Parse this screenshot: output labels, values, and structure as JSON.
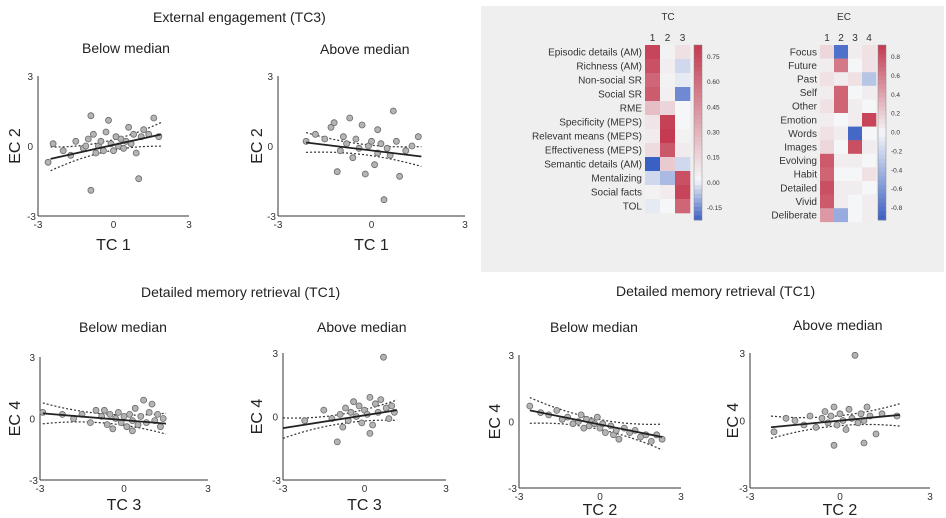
{
  "headings": {
    "top": "External engagement (TC3)",
    "middle_left": "Detailed memory retrieval (TC1)",
    "middle_right": "Detailed memory retrieval  (TC1)"
  },
  "chart_data": [
    {
      "type": "scatter",
      "title": "Below median",
      "xlabel": "TC 1",
      "ylabel": "EC 2",
      "xlim": [
        -3,
        3
      ],
      "ylim": [
        -3,
        3
      ],
      "xticks": [
        "-3",
        "0",
        "3"
      ],
      "yticks": [
        "3",
        "0",
        "-3"
      ],
      "fit": {
        "x1": -2.5,
        "y1": -0.55,
        "x2": 1.9,
        "y2": 0.5
      },
      "points": [
        [
          -2.6,
          -0.7
        ],
        [
          -2.4,
          0.1
        ],
        [
          -2.0,
          -0.2
        ],
        [
          -1.7,
          -0.4
        ],
        [
          -1.5,
          0.2
        ],
        [
          -1.2,
          -0.1
        ],
        [
          -1.0,
          0.3
        ],
        [
          -0.9,
          1.3
        ],
        [
          -0.8,
          0.5
        ],
        [
          -0.7,
          -0.3
        ],
        [
          -0.6,
          0.0
        ],
        [
          -0.5,
          0.2
        ],
        [
          -0.4,
          -0.2
        ],
        [
          -0.3,
          0.6
        ],
        [
          -0.2,
          1.1
        ],
        [
          -0.1,
          0.1
        ],
        [
          0.0,
          -0.2
        ],
        [
          0.1,
          0.4
        ],
        [
          0.2,
          0.0
        ],
        [
          0.3,
          0.3
        ],
        [
          0.4,
          -0.1
        ],
        [
          0.5,
          0.2
        ],
        [
          0.6,
          0.8
        ],
        [
          0.7,
          0.1
        ],
        [
          0.8,
          0.5
        ],
        [
          0.9,
          -0.3
        ],
        [
          1.0,
          -1.4
        ],
        [
          1.1,
          0.4
        ],
        [
          1.2,
          0.7
        ],
        [
          1.4,
          0.5
        ],
        [
          1.6,
          1.2
        ],
        [
          1.8,
          0.4
        ],
        [
          -0.9,
          -1.9
        ],
        [
          -1.1,
          0.0
        ]
      ]
    },
    {
      "type": "scatter",
      "title": "Above median",
      "xlabel": "TC 1",
      "ylabel": "EC 2",
      "xlim": [
        -3,
        3
      ],
      "ylim": [
        -3,
        3
      ],
      "xticks": [
        "-3",
        "0",
        "3"
      ],
      "yticks": [
        "3",
        "0",
        "-3"
      ],
      "fit": {
        "x1": -2.1,
        "y1": 0.15,
        "x2": 1.6,
        "y2": -0.45
      },
      "points": [
        [
          -2.1,
          0.2
        ],
        [
          -1.8,
          0.5
        ],
        [
          -1.5,
          0.3
        ],
        [
          -1.3,
          0.8
        ],
        [
          -1.2,
          1.0
        ],
        [
          -1.0,
          -0.2
        ],
        [
          -0.9,
          0.4
        ],
        [
          -0.8,
          0.1
        ],
        [
          -0.7,
          1.2
        ],
        [
          -0.6,
          -0.5
        ],
        [
          -0.5,
          0.3
        ],
        [
          -0.4,
          -0.1
        ],
        [
          -0.3,
          0.9
        ],
        [
          -0.2,
          -1.2
        ],
        [
          -0.1,
          0.0
        ],
        [
          0.0,
          0.2
        ],
        [
          0.1,
          -0.8
        ],
        [
          0.2,
          -0.3
        ],
        [
          0.3,
          0.1
        ],
        [
          0.4,
          -2.3
        ],
        [
          0.5,
          -0.1
        ],
        [
          0.6,
          -0.4
        ],
        [
          0.7,
          1.5
        ],
        [
          0.8,
          0.2
        ],
        [
          0.9,
          -1.3
        ],
        [
          1.1,
          -0.2
        ],
        [
          1.3,
          0.0
        ],
        [
          1.5,
          0.4
        ],
        [
          -1.1,
          -1.1
        ],
        [
          0.2,
          0.7
        ]
      ]
    },
    {
      "type": "scatter",
      "title": "Below median",
      "xlabel": "TC 3",
      "ylabel": "EC 4",
      "xlim": [
        -3,
        3
      ],
      "ylim": [
        -3,
        3
      ],
      "xticks": [
        "-3",
        "0",
        "3"
      ],
      "yticks": [
        "3",
        "0",
        "-3"
      ],
      "fit": {
        "x1": -2.9,
        "y1": 0.25,
        "x2": 1.5,
        "y2": -0.25
      },
      "points": [
        [
          -2.9,
          0.3
        ],
        [
          -2.2,
          0.2
        ],
        [
          -1.8,
          0.0
        ],
        [
          -1.5,
          0.2
        ],
        [
          -1.2,
          -0.2
        ],
        [
          -1.0,
          0.4
        ],
        [
          -0.8,
          0.1
        ],
        [
          -0.6,
          -0.3
        ],
        [
          -0.5,
          0.2
        ],
        [
          -0.4,
          -0.5
        ],
        [
          -0.3,
          0.0
        ],
        [
          -0.2,
          0.3
        ],
        [
          -0.1,
          -0.2
        ],
        [
          0.0,
          0.1
        ],
        [
          0.1,
          -0.4
        ],
        [
          0.2,
          0.2
        ],
        [
          0.3,
          -0.1
        ],
        [
          0.4,
          0.5
        ],
        [
          0.5,
          -0.3
        ],
        [
          0.6,
          0.1
        ],
        [
          0.7,
          0.9
        ],
        [
          0.8,
          -0.2
        ],
        [
          0.9,
          0.3
        ],
        [
          1.0,
          0.7
        ],
        [
          1.1,
          -0.1
        ],
        [
          1.2,
          0.2
        ],
        [
          1.3,
          -0.4
        ],
        [
          1.4,
          0.0
        ],
        [
          -0.7,
          0.4
        ],
        [
          0.3,
          -0.6
        ]
      ]
    },
    {
      "type": "scatter",
      "title": "Above median",
      "xlabel": "TC 3",
      "ylabel": "EC 4",
      "xlim": [
        -3,
        3
      ],
      "ylim": [
        -3,
        3
      ],
      "xticks": [
        "-3",
        "0",
        "3"
      ],
      "yticks": [
        "3",
        "0",
        "-3"
      ],
      "fit": {
        "x1": -3.0,
        "y1": -0.55,
        "x2": 1.2,
        "y2": 0.3
      },
      "points": [
        [
          -2.2,
          -0.2
        ],
        [
          -1.5,
          0.3
        ],
        [
          -1.2,
          -0.1
        ],
        [
          -1.0,
          -1.2
        ],
        [
          -0.9,
          0.1
        ],
        [
          -0.7,
          0.4
        ],
        [
          -0.6,
          -0.2
        ],
        [
          -0.5,
          0.2
        ],
        [
          -0.4,
          0.7
        ],
        [
          -0.3,
          0.0
        ],
        [
          -0.2,
          0.5
        ],
        [
          -0.1,
          -0.3
        ],
        [
          0.0,
          0.3
        ],
        [
          0.1,
          0.1
        ],
        [
          0.2,
          0.9
        ],
        [
          0.3,
          -0.4
        ],
        [
          0.4,
          0.6
        ],
        [
          0.5,
          0.2
        ],
        [
          0.6,
          0.8
        ],
        [
          0.7,
          2.8
        ],
        [
          0.8,
          0.4
        ],
        [
          0.9,
          -0.1
        ],
        [
          1.0,
          0.5
        ],
        [
          1.1,
          0.2
        ],
        [
          -0.8,
          -0.5
        ],
        [
          0.2,
          -0.8
        ]
      ]
    },
    {
      "type": "scatter",
      "title": "Below median",
      "xlabel": "TC 2",
      "ylabel": "EC 4",
      "xlim": [
        -3,
        3
      ],
      "ylim": [
        -3,
        3
      ],
      "xticks": [
        "-3",
        "0",
        "3"
      ],
      "yticks": [
        "3",
        "0",
        "-3"
      ],
      "fit": {
        "x1": -2.6,
        "y1": 0.5,
        "x2": 2.3,
        "y2": -0.7
      },
      "points": [
        [
          -2.6,
          0.7
        ],
        [
          -2.2,
          0.4
        ],
        [
          -1.9,
          0.3
        ],
        [
          -1.6,
          0.5
        ],
        [
          -1.4,
          0.1
        ],
        [
          -1.2,
          0.2
        ],
        [
          -1.0,
          -0.1
        ],
        [
          -0.8,
          0.0
        ],
        [
          -0.7,
          0.3
        ],
        [
          -0.6,
          -0.3
        ],
        [
          -0.5,
          0.1
        ],
        [
          -0.4,
          -0.2
        ],
        [
          -0.3,
          0.0
        ],
        [
          -0.2,
          -0.1
        ],
        [
          -0.1,
          0.2
        ],
        [
          0.0,
          -0.3
        ],
        [
          0.1,
          -0.1
        ],
        [
          0.2,
          -0.5
        ],
        [
          0.4,
          -0.2
        ],
        [
          0.5,
          -0.6
        ],
        [
          0.7,
          -0.8
        ],
        [
          0.9,
          -0.3
        ],
        [
          1.1,
          -0.5
        ],
        [
          1.3,
          -0.4
        ],
        [
          1.5,
          -0.7
        ],
        [
          1.7,
          -0.6
        ],
        [
          1.9,
          -0.9
        ],
        [
          2.1,
          -0.6
        ],
        [
          2.3,
          -0.8
        ],
        [
          0.6,
          -0.4
        ]
      ]
    },
    {
      "type": "scatter",
      "title": "Above median",
      "xlabel": "TC 2",
      "ylabel": "EC 4",
      "xlim": [
        -3,
        3
      ],
      "ylim": [
        -3,
        3
      ],
      "xticks": [
        "-3",
        "0",
        "3"
      ],
      "yticks": [
        "3",
        "0",
        "-3"
      ],
      "fit": {
        "x1": -2.3,
        "y1": -0.3,
        "x2": 2.0,
        "y2": 0.25
      },
      "points": [
        [
          -2.2,
          -0.5
        ],
        [
          -1.8,
          0.1
        ],
        [
          -1.5,
          0.0
        ],
        [
          -1.2,
          -0.2
        ],
        [
          -1.0,
          0.2
        ],
        [
          -0.8,
          -0.3
        ],
        [
          -0.6,
          0.1
        ],
        [
          -0.5,
          0.4
        ],
        [
          -0.4,
          -0.1
        ],
        [
          -0.3,
          0.2
        ],
        [
          -0.2,
          0.6
        ],
        [
          -0.1,
          -0.2
        ],
        [
          0.0,
          0.3
        ],
        [
          0.1,
          0.0
        ],
        [
          0.2,
          -0.4
        ],
        [
          0.3,
          0.5
        ],
        [
          0.4,
          0.1
        ],
        [
          0.5,
          2.9
        ],
        [
          0.6,
          -0.1
        ],
        [
          0.7,
          0.3
        ],
        [
          0.8,
          0.0
        ],
        [
          0.9,
          0.6
        ],
        [
          1.0,
          0.2
        ],
        [
          1.2,
          -0.6
        ],
        [
          1.4,
          0.3
        ],
        [
          1.9,
          0.2
        ],
        [
          -0.2,
          -1.1
        ],
        [
          0.8,
          -1.0
        ]
      ]
    },
    {
      "type": "heatmap",
      "title": "TC",
      "columns": [
        "1",
        "2",
        "3"
      ],
      "rows": [
        "Episodic details (AM)",
        "Richness (AM)",
        "Non-social SR",
        "Social SR",
        "RME",
        "Specificity (MEPS)",
        "Relevant means (MEPS)",
        "Effectiveness (MEPS)",
        "Semantic details (AM)",
        "Mentalizing",
        "Social facts",
        "TOL"
      ],
      "values": [
        [
          0.8,
          0.02,
          0.1
        ],
        [
          0.75,
          0.04,
          -0.05
        ],
        [
          0.65,
          0.02,
          -0.02
        ],
        [
          0.7,
          0.03,
          -0.18
        ],
        [
          0.25,
          0.15,
          0.0
        ],
        [
          0.08,
          0.82,
          0.0
        ],
        [
          0.05,
          0.85,
          0.02
        ],
        [
          0.12,
          0.72,
          0.05
        ],
        [
          -0.3,
          0.2,
          -0.05
        ],
        [
          -0.05,
          -0.1,
          0.75
        ],
        [
          0.02,
          0.05,
          0.8
        ],
        [
          -0.02,
          0.0,
          0.65
        ]
      ],
      "colorbar_ticks": [
        "0.75",
        "0.60",
        "0.45",
        "0.30",
        "0.15",
        "0.00",
        "-0.15"
      ],
      "range": [
        -0.25,
        0.85
      ]
    },
    {
      "type": "heatmap",
      "title": "EC",
      "columns": [
        "1",
        "2",
        "3",
        "4"
      ],
      "rows": [
        "Focus",
        "Future",
        "Past",
        "Self",
        "Other",
        "Emotion",
        "Words",
        "Images",
        "Evolving",
        "Habit",
        "Detailed",
        "Vivid",
        "Deliberate"
      ],
      "values": [
        [
          0.15,
          -0.8,
          0.05,
          0.1
        ],
        [
          0.05,
          0.6,
          0.0,
          0.1
        ],
        [
          0.1,
          0.05,
          0.1,
          -0.3
        ],
        [
          0.05,
          0.7,
          0.0,
          0.05
        ],
        [
          0.1,
          0.7,
          0.05,
          0.0
        ],
        [
          0.05,
          0.0,
          0.05,
          0.85
        ],
        [
          0.1,
          0.05,
          -0.85,
          0.0
        ],
        [
          0.15,
          0.0,
          0.8,
          0.05
        ],
        [
          0.75,
          0.05,
          0.05,
          0.0
        ],
        [
          0.7,
          0.0,
          0.0,
          0.1
        ],
        [
          0.8,
          0.05,
          0.05,
          0.0
        ],
        [
          0.75,
          0.05,
          0.0,
          0.05
        ],
        [
          0.45,
          -0.45,
          0.0,
          0.05
        ]
      ],
      "colorbar_ticks": [
        "0.8",
        "0.6",
        "0.4",
        "0.2",
        "0.0",
        "-0.2",
        "-0.4",
        "-0.6",
        "-0.8"
      ],
      "range": [
        -0.9,
        0.9
      ]
    }
  ]
}
